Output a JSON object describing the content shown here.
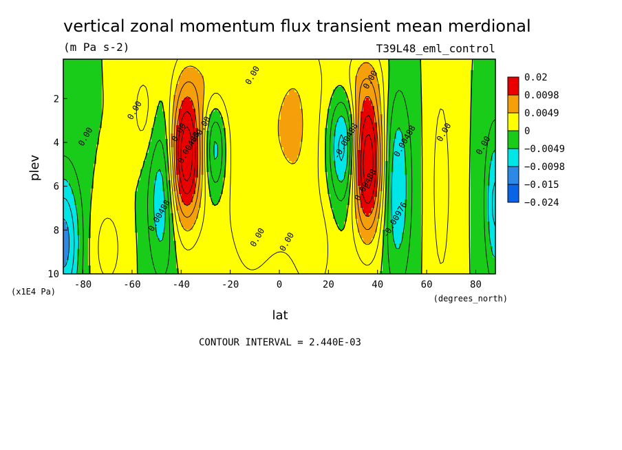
{
  "chart_data": {
    "type": "heatmap",
    "title": "vertical zonal momentum flux transient mean merdional",
    "units": "(m Pa s-2)",
    "run_label": "T39L48_eml_control",
    "xlabel": "lat",
    "x_units": "(degrees_north)",
    "ylabel": "plev",
    "y_units": "(x1E4 Pa)",
    "footer": "CONTOUR INTERVAL = 2.440E-03",
    "xlim": [
      -88,
      88
    ],
    "ylim": [
      10,
      0.2
    ],
    "x_ticks": [
      -80,
      -60,
      -40,
      -20,
      0,
      20,
      40,
      60,
      80
    ],
    "x_tick_labels": [
      "-80",
      "-60",
      "-40",
      "-20",
      "0",
      "20",
      "40",
      "60",
      "80"
    ],
    "y_ticks": [
      2,
      4,
      6,
      8,
      10
    ],
    "y_tick_labels": [
      "2",
      "4",
      "6",
      "8",
      "10"
    ],
    "levels": [
      -0.024,
      -0.015,
      -0.0098,
      -0.0049,
      0,
      0.0049,
      0.0098,
      0.02
    ],
    "level_labels": [
      "0.02",
      "0.0098",
      "0.0049",
      "0",
      "−0.0049",
      "−0.0098",
      "−0.015",
      "−0.024"
    ],
    "colors": [
      "#0a64e6",
      "#2c8ae6",
      "#00e6e6",
      "#19cc19",
      "#ffff00",
      "#f5a00a",
      "#eb0000"
    ],
    "features": [
      {
        "lat": -38,
        "plev": 4.6,
        "amp": 0.017,
        "wlat": 4.5,
        "wp": 2.2
      },
      {
        "lat": 36,
        "plev": 4.9,
        "amp": 0.017,
        "wlat": 4.5,
        "wp": 2.4
      },
      {
        "lat": -48,
        "plev": 6.5,
        "amp": -0.007,
        "wlat": 4,
        "wp": 2.6
      },
      {
        "lat": -26,
        "plev": 4.3,
        "amp": -0.0075,
        "wlat": 3,
        "wp": 1.5
      },
      {
        "lat": 26,
        "plev": 4.2,
        "amp": -0.0095,
        "wlat": 4,
        "wp": 1.8
      },
      {
        "lat": 48,
        "plev": 6.0,
        "amp": -0.0075,
        "wlat": 4,
        "wp": 3.2
      },
      {
        "lat": -88,
        "plev": 8.6,
        "amp": -0.011,
        "wlat": 5,
        "wp": 2.3
      },
      {
        "lat": 88,
        "plev": 6.8,
        "amp": -0.008,
        "wlat": 3,
        "wp": 2.5
      },
      {
        "lat": -55,
        "plev": 2.6,
        "amp": 0.0035,
        "wlat": 4,
        "wp": 1.6
      },
      {
        "lat": -12,
        "plev": 3.6,
        "amp": 0.0045,
        "wlat": 10,
        "wp": 5.5
      },
      {
        "lat": 8,
        "plev": 3.2,
        "amp": 0.0045,
        "wlat": 8,
        "wp": 4.2
      },
      {
        "lat": 66,
        "plev": 6.0,
        "amp": 0.0035,
        "wlat": 3.5,
        "wp": 4.2
      },
      {
        "lat": -30,
        "plev": 1.2,
        "amp": 0.003,
        "wlat": 8,
        "wp": 1.2
      },
      {
        "lat": 32,
        "plev": 1.2,
        "amp": 0.003,
        "wlat": 8,
        "wp": 1.2
      },
      {
        "lat": -70,
        "plev": 8.8,
        "amp": 0.0035,
        "wlat": 5,
        "wp": 1.6
      },
      {
        "lat": 15,
        "plev": 9.0,
        "amp": 0.003,
        "wlat": 5,
        "wp": 1.6
      }
    ],
    "contour_labels": [
      {
        "text": "0.00",
        "lat": -10,
        "plev": 1.0
      },
      {
        "text": "0.00",
        "lat": 38,
        "plev": 1.2
      },
      {
        "text": "0.00",
        "lat": -58,
        "plev": 2.6
      },
      {
        "text": "0.00",
        "lat": -40,
        "plev": 3.6
      },
      {
        "text": "0.00",
        "lat": -30,
        "plev": 3.3
      },
      {
        "text": "0.00",
        "lat": 68,
        "plev": 3.6
      },
      {
        "text": "0.00",
        "lat": 84,
        "plev": 4.2
      },
      {
        "text": "0.00",
        "lat": -78,
        "plev": 3.8
      },
      {
        "text": "0.00",
        "lat": -8,
        "plev": 8.4
      },
      {
        "text": "0.00",
        "lat": 4,
        "plev": 8.6
      },
      {
        "text": "0.00488",
        "lat": -36,
        "plev": 4.3
      },
      {
        "text": "0.00488",
        "lat": 36,
        "plev": 6.0
      },
      {
        "text": "0.00488",
        "lat": 52,
        "plev": 4.0
      },
      {
        "text": "0.00488",
        "lat": -48,
        "plev": 7.4
      },
      {
        "text": "-0.00488",
        "lat": 28,
        "plev": 4.0
      },
      {
        "text": "-0.00976",
        "lat": 48,
        "plev": 7.6
      }
    ]
  }
}
